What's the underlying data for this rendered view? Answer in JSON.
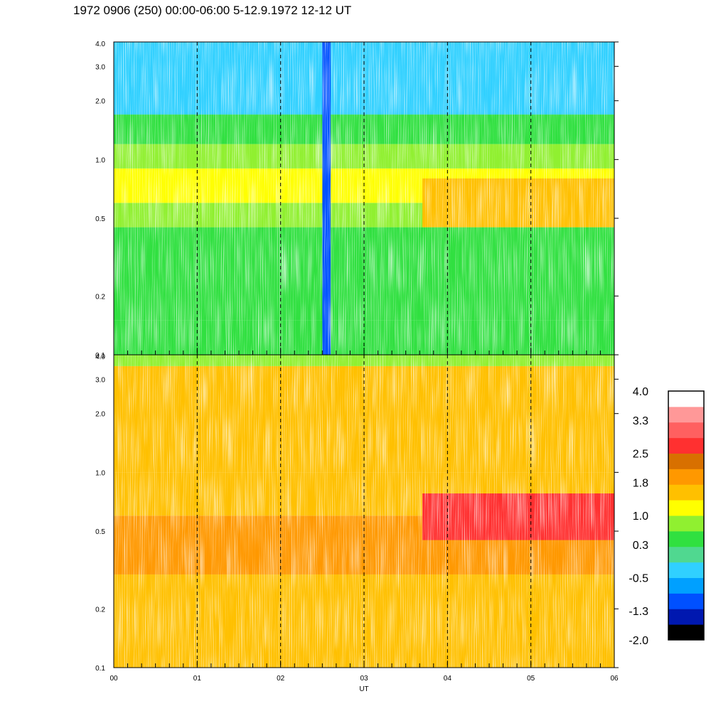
{
  "title": "1972 0906 (250) 00:00-06:00 5-12.9.1972  12-12 UT",
  "chart_data": {
    "type": "heatmap",
    "xlabel": "UT",
    "x_ticks": [
      "00",
      "01",
      "02",
      "03",
      "04",
      "05",
      "06"
    ],
    "x_range": [
      0,
      6
    ],
    "y_scale": "log",
    "y_range": [
      0.1,
      4.0
    ],
    "y_ticks": [
      "0.1",
      "0.2",
      "0.5",
      "1.0",
      "2.0",
      "3.0",
      "4.0"
    ],
    "panels": [
      {
        "name": "upper",
        "bands": [
          {
            "y_from": 0.1,
            "y_to": 0.15,
            "level": 0.3
          },
          {
            "y_from": 0.15,
            "y_to": 0.45,
            "level": 0.45
          },
          {
            "y_from": 0.45,
            "y_to": 0.6,
            "level": 0.75
          },
          {
            "y_from": 0.6,
            "y_to": 0.9,
            "level": 1.2
          },
          {
            "y_from": 0.9,
            "y_to": 1.2,
            "level": 0.7
          },
          {
            "y_from": 1.2,
            "y_to": 1.7,
            "level": 0.4
          },
          {
            "y_from": 1.7,
            "y_to": 4.0,
            "level": -0.3
          }
        ],
        "features": [
          {
            "x_from": 2.5,
            "x_to": 2.6,
            "y_from": 0.1,
            "y_to": 4.0,
            "level": -1.0
          },
          {
            "x_from": 3.7,
            "x_to": 6.0,
            "y_from": 0.45,
            "y_to": 0.8,
            "level": 1.5
          }
        ]
      },
      {
        "name": "lower",
        "bands": [
          {
            "y_from": 0.1,
            "y_to": 0.3,
            "level": 1.6
          },
          {
            "y_from": 0.3,
            "y_to": 0.6,
            "level": 2.1
          },
          {
            "y_from": 0.6,
            "y_to": 1.0,
            "level": 1.7
          },
          {
            "y_from": 1.0,
            "y_to": 3.5,
            "level": 1.4
          },
          {
            "y_from": 3.5,
            "y_to": 4.0,
            "level": 0.9
          }
        ],
        "features": [
          {
            "x_from": 3.7,
            "x_to": 6.0,
            "y_from": 0.45,
            "y_to": 0.78,
            "level": 2.8
          }
        ]
      }
    ],
    "colorbar": {
      "min": -2.0,
      "max": 4.0,
      "labels": [
        "4.0",
        "3.3",
        "2.5",
        "1.8",
        "1.0",
        "0.3",
        "-0.5",
        "-1.3",
        "-2.0"
      ],
      "colors": [
        "#000000",
        "#0018b0",
        "#0050ff",
        "#00a0ff",
        "#30d0ff",
        "#50d890",
        "#30e040",
        "#90f030",
        "#ffff00",
        "#ffc000",
        "#ff9800",
        "#d87000",
        "#ff3030",
        "#ff6060",
        "#ff9898",
        "#ffffff"
      ]
    },
    "grid": "dashed vertical lines at each hour"
  }
}
